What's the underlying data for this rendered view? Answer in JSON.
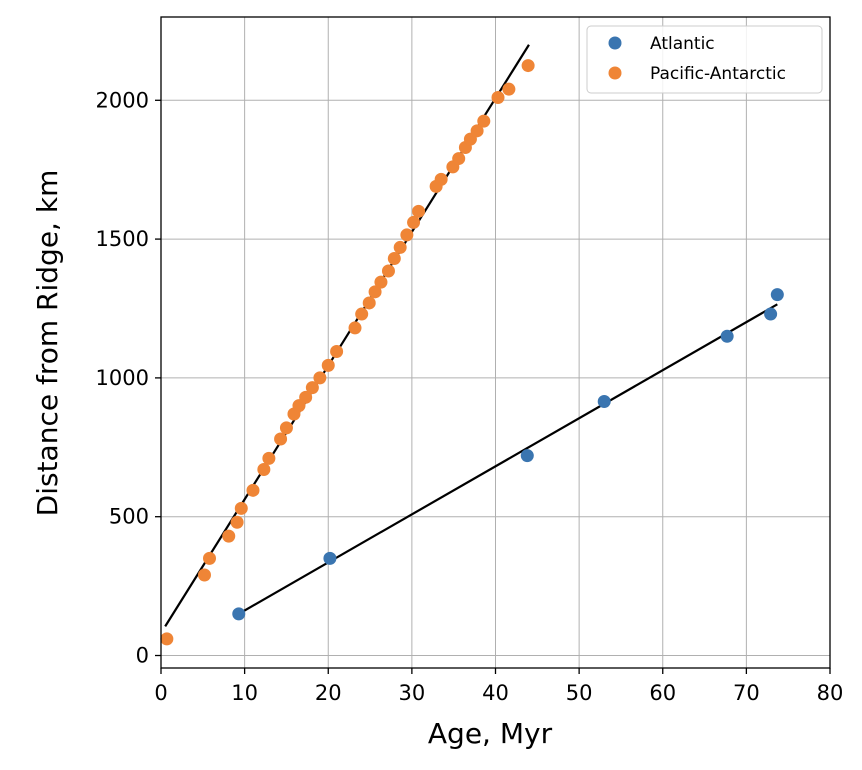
{
  "chart_data": {
    "type": "scatter",
    "xlabel": "Age, Myr",
    "ylabel": "Distance from Ridge, km",
    "xlim": [
      0,
      80
    ],
    "ylim": [
      -45,
      2300
    ],
    "xticks": [
      0,
      10,
      20,
      30,
      40,
      50,
      60,
      70,
      80
    ],
    "yticks": [
      0,
      500,
      1000,
      1500,
      2000
    ],
    "grid": true,
    "legend_position": "top-right",
    "series": [
      {
        "name": "Atlantic",
        "color": "#3a75b0",
        "x": [
          9.3,
          20.2,
          43.8,
          53.0,
          67.7,
          72.9,
          73.7
        ],
        "y": [
          150,
          350,
          720,
          915,
          1150,
          1230,
          1300
        ]
      },
      {
        "name": "Pacific-Antarctic",
        "color": "#ef8536",
        "x": [
          0.7,
          5.2,
          5.8,
          8.1,
          9.1,
          9.6,
          11.0,
          12.3,
          12.9,
          14.3,
          15.0,
          15.9,
          16.5,
          17.3,
          18.1,
          19.0,
          20.0,
          21.0,
          23.2,
          24.0,
          24.9,
          25.6,
          26.3,
          27.2,
          27.9,
          28.6,
          29.4,
          30.2,
          30.8,
          32.9,
          33.5,
          34.9,
          35.6,
          36.4,
          37.0,
          37.8,
          38.6,
          40.3,
          41.6,
          43.9
        ],
        "y": [
          60,
          290,
          350,
          430,
          480,
          530,
          595,
          670,
          710,
          780,
          820,
          870,
          900,
          930,
          965,
          1000,
          1045,
          1095,
          1180,
          1230,
          1270,
          1310,
          1345,
          1385,
          1430,
          1470,
          1515,
          1560,
          1600,
          1690,
          1715,
          1760,
          1790,
          1830,
          1860,
          1890,
          1925,
          2010,
          2040,
          2125
        ]
      }
    ],
    "fit_lines": [
      {
        "series": "Atlantic",
        "color": "#000000",
        "x": [
          9.3,
          73.7
        ],
        "y": [
          150,
          1265
        ]
      },
      {
        "series": "Pacific-Antarctic",
        "color": "#000000",
        "x": [
          0.5,
          44.0
        ],
        "y": [
          105,
          2200
        ]
      }
    ]
  }
}
